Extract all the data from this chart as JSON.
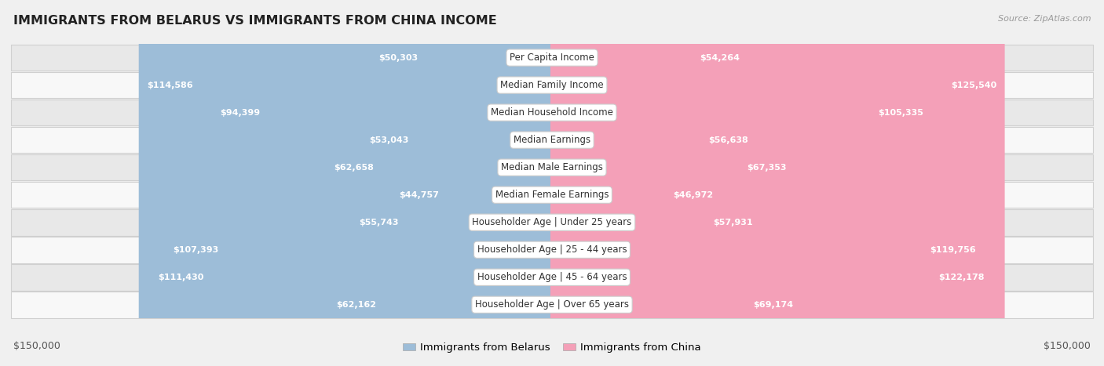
{
  "title": "IMMIGRANTS FROM BELARUS VS IMMIGRANTS FROM CHINA INCOME",
  "source": "Source: ZipAtlas.com",
  "categories": [
    "Per Capita Income",
    "Median Family Income",
    "Median Household Income",
    "Median Earnings",
    "Median Male Earnings",
    "Median Female Earnings",
    "Householder Age | Under 25 years",
    "Householder Age | 25 - 44 years",
    "Householder Age | 45 - 64 years",
    "Householder Age | Over 65 years"
  ],
  "belarus_values": [
    50303,
    114586,
    94399,
    53043,
    62658,
    44757,
    55743,
    107393,
    111430,
    62162
  ],
  "china_values": [
    54264,
    125540,
    105335,
    56638,
    67353,
    46972,
    57931,
    119756,
    122178,
    69174
  ],
  "belarus_labels": [
    "$50,303",
    "$114,586",
    "$94,399",
    "$53,043",
    "$62,658",
    "$44,757",
    "$55,743",
    "$107,393",
    "$111,430",
    "$62,162"
  ],
  "china_labels": [
    "$54,264",
    "$125,540",
    "$105,335",
    "$56,638",
    "$67,353",
    "$46,972",
    "$57,931",
    "$119,756",
    "$122,178",
    "$69,174"
  ],
  "belarus_color": "#9dbdd8",
  "china_color": "#f4a0b8",
  "max_value": 150000,
  "legend_belarus": "Immigrants from Belarus",
  "legend_china": "Immigrants from China",
  "bg_color": "#f0f0f0",
  "row_colors": [
    "#e8e8e8",
    "#f8f8f8",
    "#e8e8e8",
    "#f8f8f8",
    "#e8e8e8",
    "#f8f8f8",
    "#e8e8e8",
    "#f8f8f8",
    "#e8e8e8",
    "#f8f8f8"
  ],
  "xlabel_left": "$150,000",
  "xlabel_right": "$150,000",
  "inside_label_threshold": 0.28
}
